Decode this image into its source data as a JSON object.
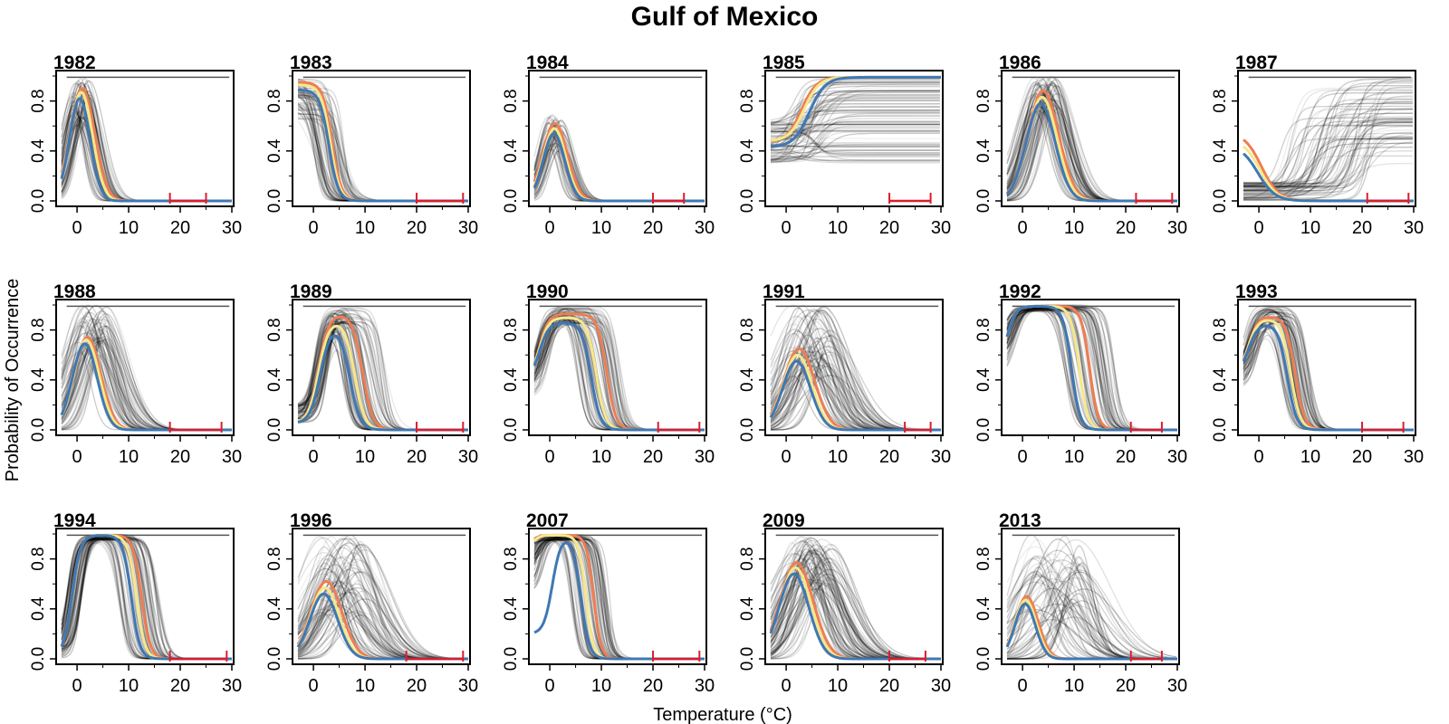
{
  "figure": {
    "title": "Gulf of Mexico",
    "ylabel": "Probability of Occurrence",
    "xlabel": "Temperature (°C)"
  },
  "colors": {
    "ensemble": "#000000",
    "blue": "#3f77b3",
    "yellow": "#f5e88a",
    "orange": "#ef7d52",
    "range": "#dd1c2b",
    "frame": "#000000"
  },
  "chart_data": [
    {
      "type": "line",
      "title": "1982",
      "xlim": [
        -3,
        30
      ],
      "ylim": [
        0,
        1
      ],
      "xticks": [
        0,
        10,
        20,
        30
      ],
      "yticks": [
        0.0,
        0.4,
        0.8
      ],
      "range": [
        18,
        25
      ],
      "ensemble": {
        "type": "peak",
        "n": 70,
        "peak": [
          0.6,
          1.0
        ],
        "mu": [
          -1,
          2.5
        ],
        "sigma": [
          1.6,
          3.0
        ]
      },
      "series": [
        {
          "name": "",
          "color": "orange",
          "peak": 0.9,
          "mu": 1.0,
          "sigma": 2.4
        },
        {
          "name": "",
          "color": "yellow",
          "peak": 0.87,
          "mu": 0.8,
          "sigma": 2.2
        },
        {
          "name": "",
          "color": "blue",
          "peak": 0.82,
          "mu": 0.5,
          "sigma": 2.0
        }
      ]
    },
    {
      "type": "line",
      "title": "1983",
      "xlim": [
        -3,
        30
      ],
      "ylim": [
        0,
        1
      ],
      "xticks": [
        0,
        10,
        20,
        30
      ],
      "yticks": [
        0.0,
        0.4,
        0.8
      ],
      "range": [
        20,
        29
      ],
      "ensemble": {
        "type": "decay",
        "n": 70,
        "start": [
          0.65,
          1.0
        ],
        "t50": [
          0,
          6
        ],
        "k": [
          0.6,
          1.6
        ]
      },
      "series": [
        {
          "name": "",
          "color": "orange",
          "start": 0.95,
          "t50": 3.6,
          "k": 1.1
        },
        {
          "name": "",
          "color": "yellow",
          "start": 0.93,
          "t50": 3.3,
          "k": 1.1
        },
        {
          "name": "",
          "color": "blue",
          "start": 0.89,
          "t50": 3.0,
          "k": 1.1
        }
      ]
    },
    {
      "type": "line",
      "title": "1984",
      "xlim": [
        -3,
        30
      ],
      "ylim": [
        0,
        1
      ],
      "xticks": [
        0,
        10,
        20,
        30
      ],
      "yticks": [
        0.0,
        0.4,
        0.8
      ],
      "range": [
        20,
        26
      ],
      "ensemble": {
        "type": "peak",
        "n": 60,
        "peak": [
          0.4,
          0.7
        ],
        "mu": [
          -0.5,
          2.5
        ],
        "sigma": [
          1.5,
          2.8
        ]
      },
      "series": [
        {
          "name": "",
          "color": "orange",
          "peak": 0.62,
          "mu": 1.0,
          "sigma": 2.4
        },
        {
          "name": "",
          "color": "yellow",
          "peak": 0.58,
          "mu": 0.9,
          "sigma": 2.2
        },
        {
          "name": "",
          "color": "blue",
          "peak": 0.54,
          "mu": 0.8,
          "sigma": 2.1
        }
      ]
    },
    {
      "type": "line",
      "title": "1985",
      "xlim": [
        -3,
        30
      ],
      "ylim": [
        0,
        1
      ],
      "xticks": [
        0,
        10,
        20,
        30
      ],
      "yticks": [
        0.0,
        0.4,
        0.8
      ],
      "range": [
        20,
        28
      ],
      "ensemble": {
        "type": "rise",
        "n": 80,
        "start": [
          0.3,
          0.65
        ],
        "end": [
          0.3,
          1.0
        ],
        "t50": [
          0,
          8
        ],
        "k": [
          0.4,
          1.2
        ]
      },
      "series": [
        {
          "name": "",
          "color": "orange",
          "start": 0.47,
          "end": 0.99,
          "t50": 3.0,
          "k": 0.7
        },
        {
          "name": "",
          "color": "yellow",
          "start": 0.48,
          "end": 0.99,
          "t50": 3.5,
          "k": 0.7
        },
        {
          "name": "",
          "color": "blue",
          "start": 0.43,
          "end": 0.99,
          "t50": 4.5,
          "k": 0.65
        }
      ]
    },
    {
      "type": "line",
      "title": "1986",
      "xlim": [
        -3,
        30
      ],
      "ylim": [
        0,
        1
      ],
      "xticks": [
        0,
        10,
        20,
        30
      ],
      "yticks": [
        0.0,
        0.4,
        0.8
      ],
      "range": [
        22,
        29
      ],
      "ensemble": {
        "type": "peak",
        "n": 80,
        "peak": [
          0.7,
          1.0
        ],
        "mu": [
          2,
          7
        ],
        "sigma": [
          2.5,
          4.0
        ]
      },
      "series": [
        {
          "name": "",
          "color": "orange",
          "peak": 0.88,
          "mu": 4.0,
          "sigma": 3.0
        },
        {
          "name": "",
          "color": "yellow",
          "peak": 0.83,
          "mu": 3.8,
          "sigma": 2.9
        },
        {
          "name": "",
          "color": "blue",
          "peak": 0.78,
          "mu": 3.5,
          "sigma": 2.8
        }
      ]
    },
    {
      "type": "line",
      "title": "1987",
      "xlim": [
        -3,
        30
      ],
      "ylim": [
        0,
        1
      ],
      "xticks": [
        0,
        10,
        20,
        30
      ],
      "yticks": [
        0.0,
        0.4,
        0.8
      ],
      "range": [
        21,
        29
      ],
      "ensemble": {
        "type": "rise",
        "n": 70,
        "start": [
          0.0,
          0.15
        ],
        "end": [
          0.3,
          1.0
        ],
        "t50": [
          4,
          22
        ],
        "k": [
          0.4,
          1.2
        ]
      },
      "series": [
        {
          "name": "",
          "color": "orange",
          "start": 0.55,
          "t50": 0.5,
          "k": 0.6
        },
        {
          "name": "",
          "color": "yellow",
          "start": 0.5,
          "t50": 0.2,
          "k": 0.6
        },
        {
          "name": "",
          "color": "blue",
          "start": 0.45,
          "t50": -0.2,
          "k": 0.6
        }
      ]
    },
    {
      "type": "line",
      "title": "1988",
      "xlim": [
        -3,
        30
      ],
      "ylim": [
        0,
        1
      ],
      "xticks": [
        0,
        10,
        20,
        30
      ],
      "yticks": [
        0.0,
        0.4,
        0.8
      ],
      "range": [
        18,
        28
      ],
      "ensemble": {
        "type": "peak",
        "n": 75,
        "peak": [
          0.6,
          1.0
        ],
        "mu": [
          0,
          6
        ],
        "sigma": [
          2,
          5
        ]
      },
      "series": [
        {
          "name": "",
          "color": "orange",
          "peak": 0.74,
          "mu": 2.0,
          "sigma": 2.6
        },
        {
          "name": "",
          "color": "yellow",
          "peak": 0.72,
          "mu": 1.8,
          "sigma": 2.5
        },
        {
          "name": "",
          "color": "blue",
          "peak": 0.69,
          "mu": 1.5,
          "sigma": 2.4
        }
      ]
    },
    {
      "type": "line",
      "title": "1989",
      "xlim": [
        -3,
        30
      ],
      "ylim": [
        0,
        1
      ],
      "xticks": [
        0,
        10,
        20,
        30
      ],
      "yticks": [
        0.0,
        0.4,
        0.8
      ],
      "range": [
        20,
        29
      ],
      "ensemble": {
        "type": "plateau",
        "n": 80,
        "start": [
          0.05,
          0.2
        ],
        "top": [
          0.85,
          1.0
        ],
        "up": [
          0,
          3
        ],
        "down": [
          5,
          14
        ],
        "k": [
          0.8,
          1.4
        ]
      },
      "series": [
        {
          "name": "",
          "color": "orange",
          "start": 0.05,
          "top": 0.93,
          "up": 1.0,
          "down": 9.5,
          "k": 1.0
        },
        {
          "name": "",
          "color": "yellow",
          "start": 0.05,
          "top": 0.88,
          "up": 1.0,
          "down": 8.0,
          "k": 1.0
        },
        {
          "name": "",
          "color": "blue",
          "start": 0.05,
          "top": 0.84,
          "up": 1.3,
          "down": 7.0,
          "k": 1.0
        }
      ]
    },
    {
      "type": "line",
      "title": "1990",
      "xlim": [
        -3,
        30
      ],
      "ylim": [
        0,
        1
      ],
      "xticks": [
        0,
        10,
        20,
        30
      ],
      "yticks": [
        0.0,
        0.4,
        0.8
      ],
      "range": [
        21,
        29
      ],
      "ensemble": {
        "type": "plateau",
        "n": 80,
        "start": [
          0.25,
          0.5
        ],
        "top": [
          0.85,
          1.0
        ],
        "up": [
          -3,
          0
        ],
        "down": [
          5,
          14
        ],
        "k": [
          0.8,
          1.4
        ]
      },
      "series": [
        {
          "name": "",
          "color": "orange",
          "start": 0.4,
          "top": 0.93,
          "up": -2.0,
          "down": 11.0,
          "k": 1.1
        },
        {
          "name": "",
          "color": "yellow",
          "start": 0.4,
          "top": 0.9,
          "up": -2.0,
          "down": 9.0,
          "k": 1.1
        },
        {
          "name": "",
          "color": "blue",
          "start": 0.4,
          "top": 0.86,
          "up": -2.0,
          "down": 8.0,
          "k": 1.1
        }
      ]
    },
    {
      "type": "line",
      "title": "1991",
      "xlim": [
        -3,
        30
      ],
      "ylim": [
        0,
        1
      ],
      "xticks": [
        0,
        10,
        20,
        30
      ],
      "yticks": [
        0.0,
        0.4,
        0.8
      ],
      "range": [
        23,
        28
      ],
      "ensemble": {
        "type": "peak",
        "n": 80,
        "peak": [
          0.4,
          1.0
        ],
        "mu": [
          1,
          9
        ],
        "sigma": [
          2.5,
          6
        ]
      },
      "series": [
        {
          "name": "",
          "color": "orange",
          "peak": 0.65,
          "mu": 2.5,
          "sigma": 3.0
        },
        {
          "name": "",
          "color": "yellow",
          "peak": 0.6,
          "mu": 2.2,
          "sigma": 2.8
        },
        {
          "name": "",
          "color": "blue",
          "peak": 0.55,
          "mu": 2.0,
          "sigma": 2.7
        }
      ]
    },
    {
      "type": "line",
      "title": "1992",
      "xlim": [
        -3,
        30
      ],
      "ylim": [
        0,
        1
      ],
      "xticks": [
        0,
        10,
        20,
        30
      ],
      "yticks": [
        0.0,
        0.4,
        0.8
      ],
      "range": [
        21,
        27
      ],
      "ensemble": {
        "type": "plateau",
        "n": 80,
        "start": [
          0.4,
          0.7
        ],
        "top": [
          0.95,
          1.0
        ],
        "up": [
          -4,
          -1
        ],
        "down": [
          8,
          18
        ],
        "k": [
          0.8,
          1.4
        ]
      },
      "series": [
        {
          "name": "",
          "color": "orange",
          "start": 0.5,
          "top": 0.99,
          "up": -3.0,
          "down": 13.0,
          "k": 1.2
        },
        {
          "name": "",
          "color": "yellow",
          "start": 0.5,
          "top": 0.99,
          "up": -3.0,
          "down": 11.0,
          "k": 1.2
        },
        {
          "name": "",
          "color": "blue",
          "start": 0.5,
          "top": 0.99,
          "up": -3.0,
          "down": 9.5,
          "k": 1.2
        }
      ]
    },
    {
      "type": "line",
      "title": "1993",
      "xlim": [
        -3,
        30
      ],
      "ylim": [
        0,
        1
      ],
      "xticks": [
        0,
        10,
        20,
        30
      ],
      "yticks": [
        0.0,
        0.4,
        0.8
      ],
      "range": [
        20,
        28
      ],
      "ensemble": {
        "type": "plateau",
        "n": 75,
        "start": [
          0.3,
          0.5
        ],
        "top": [
          0.85,
          1.0
        ],
        "up": [
          -3,
          0
        ],
        "down": [
          4,
          10
        ],
        "k": [
          0.8,
          1.4
        ]
      },
      "series": [
        {
          "name": "",
          "color": "orange",
          "start": 0.45,
          "top": 0.91,
          "up": -2.0,
          "down": 7.0,
          "k": 1.1
        },
        {
          "name": "",
          "color": "yellow",
          "start": 0.45,
          "top": 0.89,
          "up": -2.0,
          "down": 6.2,
          "k": 1.1
        },
        {
          "name": "",
          "color": "blue",
          "start": 0.45,
          "top": 0.85,
          "up": -2.0,
          "down": 5.5,
          "k": 1.1
        }
      ]
    },
    {
      "type": "line",
      "title": "1994",
      "xlim": [
        -3,
        30
      ],
      "ylim": [
        0,
        1
      ],
      "xticks": [
        0,
        10,
        20,
        30
      ],
      "yticks": [
        0.0,
        0.4,
        0.8
      ],
      "range": [
        18,
        29
      ],
      "ensemble": {
        "type": "plateau",
        "n": 80,
        "start": [
          0.0,
          0.1
        ],
        "top": [
          0.95,
          1.0
        ],
        "up": [
          -2,
          1
        ],
        "down": [
          8,
          16
        ],
        "k": [
          0.9,
          1.6
        ]
      },
      "series": [
        {
          "name": "",
          "color": "orange",
          "start": 0.02,
          "top": 0.99,
          "up": -1.0,
          "down": 12.5,
          "k": 1.2
        },
        {
          "name": "",
          "color": "yellow",
          "start": 0.02,
          "top": 0.99,
          "up": -1.0,
          "down": 11.5,
          "k": 1.2
        },
        {
          "name": "",
          "color": "blue",
          "start": 0.02,
          "top": 0.99,
          "up": -1.0,
          "down": 10.5,
          "k": 1.2
        }
      ]
    },
    {
      "type": "line",
      "title": "1996",
      "xlim": [
        -3,
        30
      ],
      "ylim": [
        0,
        1
      ],
      "xticks": [
        0,
        10,
        20,
        30
      ],
      "yticks": [
        0.0,
        0.4,
        0.8
      ],
      "range": [
        18,
        29
      ],
      "ensemble": {
        "type": "peak",
        "n": 80,
        "peak": [
          0.35,
          1.0
        ],
        "mu": [
          1,
          10
        ],
        "sigma": [
          2.5,
          6
        ]
      },
      "series": [
        {
          "name": "",
          "color": "orange",
          "peak": 0.62,
          "mu": 2.5,
          "sigma": 3.0
        },
        {
          "name": "",
          "color": "yellow",
          "peak": 0.57,
          "mu": 2.2,
          "sigma": 2.8
        },
        {
          "name": "",
          "color": "blue",
          "peak": 0.52,
          "mu": 2.0,
          "sigma": 2.7
        }
      ]
    },
    {
      "type": "line",
      "title": "2007",
      "xlim": [
        -3,
        30
      ],
      "ylim": [
        0,
        1
      ],
      "xticks": [
        0,
        10,
        20,
        30
      ],
      "yticks": [
        0.0,
        0.4,
        0.8
      ],
      "range": [
        20,
        29
      ],
      "ensemble": {
        "type": "plateau",
        "n": 80,
        "start": [
          0.5,
          0.95
        ],
        "top": [
          0.95,
          1.0
        ],
        "up": [
          -4,
          -1
        ],
        "down": [
          4,
          12
        ],
        "k": [
          1.0,
          1.8
        ]
      },
      "series": [
        {
          "name": "",
          "color": "orange",
          "start": 0.9,
          "top": 0.99,
          "up": -3.5,
          "down": 8.5,
          "k": 1.4
        },
        {
          "name": "",
          "color": "yellow",
          "start": 0.85,
          "top": 0.99,
          "up": -3.5,
          "down": 7.0,
          "k": 1.4
        },
        {
          "name": "",
          "color": "blue",
          "start": 0.2,
          "top": 0.99,
          "up": 0.5,
          "down": 6.0,
          "k": 1.2
        }
      ]
    },
    {
      "type": "line",
      "title": "2009",
      "xlim": [
        -3,
        30
      ],
      "ylim": [
        0,
        1
      ],
      "xticks": [
        0,
        10,
        20,
        30
      ],
      "yticks": [
        0.0,
        0.4,
        0.8
      ],
      "range": [
        20,
        27
      ],
      "ensemble": {
        "type": "peak",
        "n": 80,
        "peak": [
          0.55,
          1.0
        ],
        "mu": [
          1,
          9
        ],
        "sigma": [
          2.5,
          6
        ]
      },
      "series": [
        {
          "name": "",
          "color": "orange",
          "peak": 0.77,
          "mu": 2.0,
          "sigma": 3.2
        },
        {
          "name": "",
          "color": "yellow",
          "peak": 0.73,
          "mu": 1.8,
          "sigma": 3.0
        },
        {
          "name": "",
          "color": "blue",
          "peak": 0.68,
          "mu": 1.5,
          "sigma": 2.9
        }
      ]
    },
    {
      "type": "line",
      "title": "2013",
      "xlim": [
        -3,
        30
      ],
      "ylim": [
        0,
        1
      ],
      "xticks": [
        0,
        10,
        20,
        30
      ],
      "yticks": [
        0.0,
        0.4,
        0.8
      ],
      "range": [
        21,
        27
      ],
      "ensemble": {
        "type": "peak",
        "n": 60,
        "peak": [
          0.3,
          1.0
        ],
        "mu": [
          1,
          12
        ],
        "sigma": [
          2,
          7
        ]
      },
      "series": [
        {
          "name": "",
          "color": "orange",
          "peak": 0.5,
          "mu": 0.8,
          "sigma": 2.2
        },
        {
          "name": "",
          "color": "yellow",
          "peak": 0.47,
          "mu": 0.6,
          "sigma": 2.1
        },
        {
          "name": "",
          "color": "blue",
          "peak": 0.44,
          "mu": 0.5,
          "sigma": 2.0
        }
      ]
    }
  ]
}
